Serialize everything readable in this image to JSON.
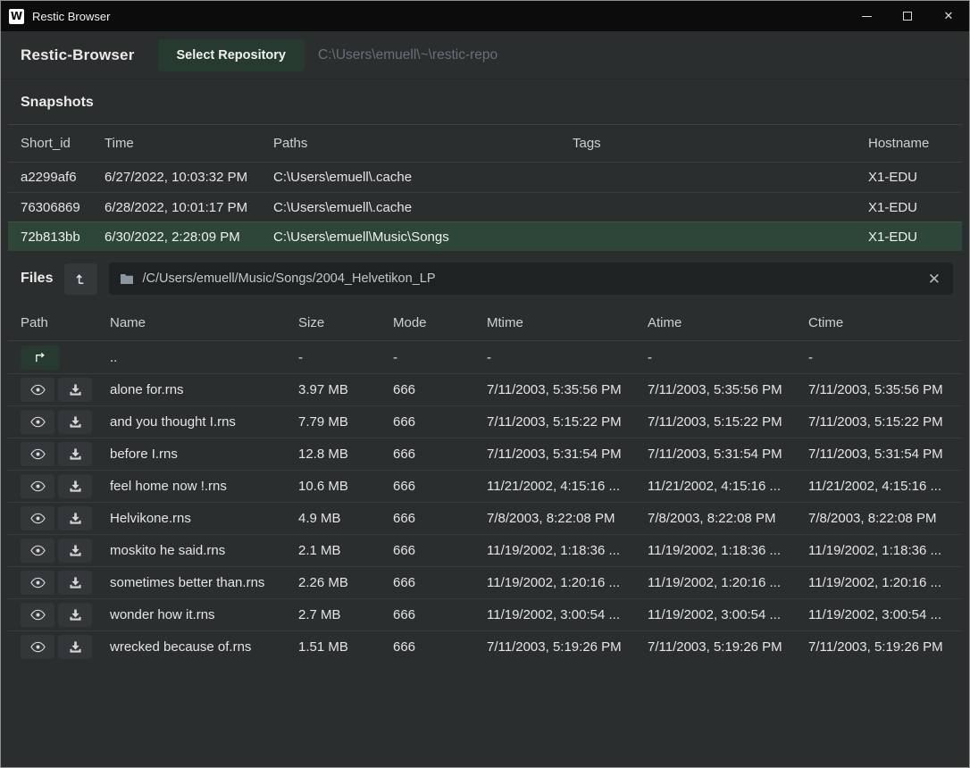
{
  "window": {
    "title": "Restic Browser",
    "app_icon_letter": "W",
    "controls": {
      "minimize": "",
      "maximize": "",
      "close": "✕"
    }
  },
  "header": {
    "app_name": "Restic-Browser",
    "select_repository_label": "Select Repository",
    "repo_path": "C:\\Users\\emuell\\~\\restic-repo"
  },
  "snapshots": {
    "title": "Snapshots",
    "columns": [
      "Short_id",
      "Time",
      "Paths",
      "Tags",
      "Hostname"
    ],
    "rows": [
      {
        "short_id": "a2299af6",
        "time": "6/27/2022, 10:03:32 PM",
        "paths": "C:\\Users\\emuell\\.cache",
        "tags": "",
        "hostname": "X1-EDU",
        "selected": false
      },
      {
        "short_id": "76306869",
        "time": "6/28/2022, 10:01:17 PM",
        "paths": "C:\\Users\\emuell\\.cache",
        "tags": "",
        "hostname": "X1-EDU",
        "selected": false
      },
      {
        "short_id": "72b813bb",
        "time": "6/30/2022, 2:28:09 PM",
        "paths": "C:\\Users\\emuell\\Music\\Songs",
        "tags": "",
        "hostname": "X1-EDU",
        "selected": true
      }
    ]
  },
  "files": {
    "title": "Files",
    "path_value": "/C/Users/emuell/Music/Songs/2004_Helvetikon_LP",
    "clear_glyph": "✕",
    "columns": [
      "Path",
      "Name",
      "Size",
      "Mode",
      "Mtime",
      "Atime",
      "Ctime"
    ],
    "parent_row": {
      "name": "..",
      "size": "-",
      "mode": "-",
      "mtime": "-",
      "atime": "-",
      "ctime": "-"
    },
    "rows": [
      {
        "name": "alone for.rns",
        "size": "3.97 MB",
        "mode": "666",
        "mtime": "7/11/2003, 5:35:56 PM",
        "atime": "7/11/2003, 5:35:56 PM",
        "ctime": "7/11/2003, 5:35:56 PM"
      },
      {
        "name": "and you thought I.rns",
        "size": "7.79 MB",
        "mode": "666",
        "mtime": "7/11/2003, 5:15:22 PM",
        "atime": "7/11/2003, 5:15:22 PM",
        "ctime": "7/11/2003, 5:15:22 PM"
      },
      {
        "name": "before I.rns",
        "size": "12.8 MB",
        "mode": "666",
        "mtime": "7/11/2003, 5:31:54 PM",
        "atime": "7/11/2003, 5:31:54 PM",
        "ctime": "7/11/2003, 5:31:54 PM"
      },
      {
        "name": "feel home now !.rns",
        "size": "10.6 MB",
        "mode": "666",
        "mtime": "11/21/2002, 4:15:16 ...",
        "atime": "11/21/2002, 4:15:16 ...",
        "ctime": "11/21/2002, 4:15:16 ..."
      },
      {
        "name": "Helvikone.rns",
        "size": "4.9 MB",
        "mode": "666",
        "mtime": "7/8/2003, 8:22:08 PM",
        "atime": "7/8/2003, 8:22:08 PM",
        "ctime": "7/8/2003, 8:22:08 PM"
      },
      {
        "name": "moskito he said.rns",
        "size": "2.1 MB",
        "mode": "666",
        "mtime": "11/19/2002, 1:18:36 ...",
        "atime": "11/19/2002, 1:18:36 ...",
        "ctime": "11/19/2002, 1:18:36 ..."
      },
      {
        "name": "sometimes better than.rns",
        "size": "2.26 MB",
        "mode": "666",
        "mtime": "11/19/2002, 1:20:16 ...",
        "atime": "11/19/2002, 1:20:16 ...",
        "ctime": "11/19/2002, 1:20:16 ..."
      },
      {
        "name": "wonder how it.rns",
        "size": "2.7 MB",
        "mode": "666",
        "mtime": "11/19/2002, 3:00:54 ...",
        "atime": "11/19/2002, 3:00:54 ...",
        "ctime": "11/19/2002, 3:00:54 ..."
      },
      {
        "name": "wrecked because of.rns",
        "size": "1.51 MB",
        "mode": "666",
        "mtime": "7/11/2003, 5:19:26 PM",
        "atime": "7/11/2003, 5:19:26 PM",
        "ctime": "7/11/2003, 5:19:26 PM"
      }
    ]
  },
  "colors": {
    "background": "#2b2e2f",
    "titlebar": "#0c0c0c",
    "selected_row": "#2d4637",
    "accent_green": "#273a2f",
    "button_gray": "#34373a",
    "input_bg": "#1f2223",
    "muted_text": "#68707a"
  }
}
